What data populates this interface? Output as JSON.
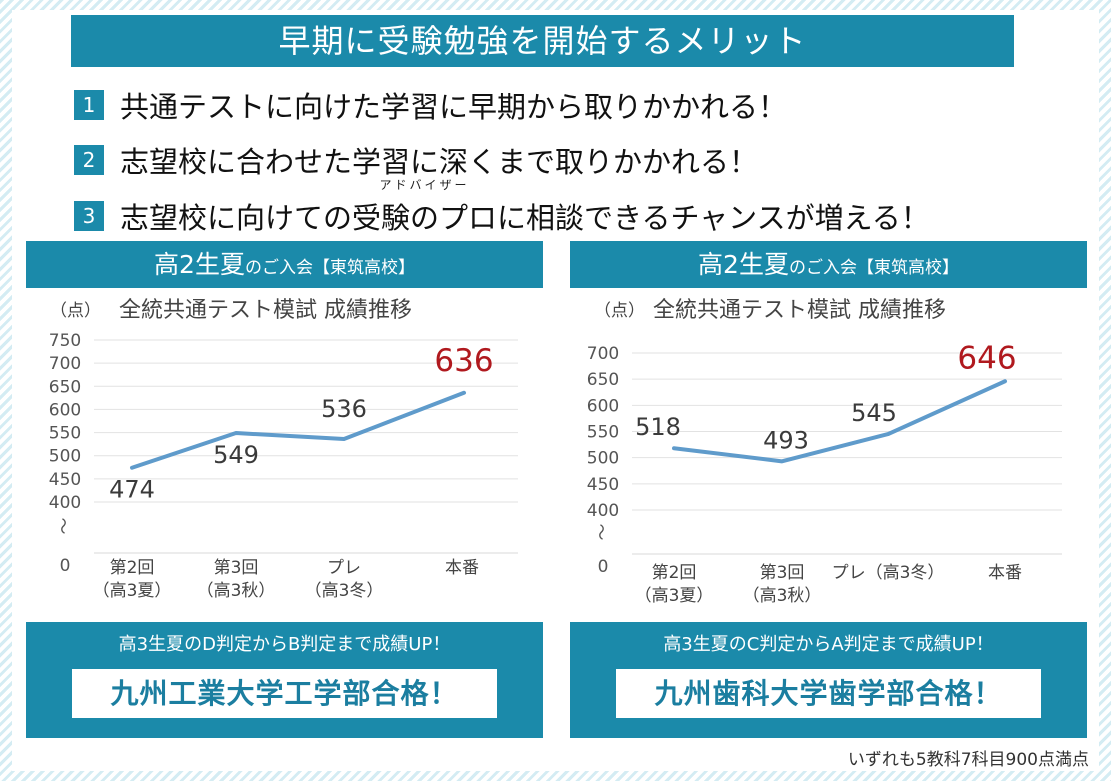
{
  "headline": "早期に受験勉強を開始するメリット",
  "merits": [
    {
      "num": "1",
      "text": "共通テストに向けた学習に早期から取りかかれる！"
    },
    {
      "num": "2",
      "text": "志望校に合わせた学習に深くまで取りかかれる！"
    },
    {
      "num": "3",
      "text_before": "志望校に向けての",
      "ruby_base": "受験のプロ",
      "ruby_text": "アドバイザー",
      "text_after": "に相談できるチャンスが増える！"
    }
  ],
  "panels": [
    {
      "head_big": "高2生夏",
      "head_small": "のご入会【東筑高校】",
      "result_line": "高3生夏のD判定からB判定まで成績UP！",
      "result_school": "九州工業大学工学部合格！"
    },
    {
      "head_big": "高2生夏",
      "head_small": "のご入会【東筑高校】",
      "result_line": "高3生夏のC判定からA判定まで成績UP！",
      "result_school": "九州歯科大学歯学部合格！"
    }
  ],
  "footnote": "いずれも5教科7科目900点満点",
  "colors": {
    "accent": "#1b8aaa",
    "line": "#5f9bcb",
    "highlight": "#b0191e"
  },
  "chart_data": [
    {
      "type": "line",
      "title": "全統共通テスト模試 成績推移",
      "ylabel": "（点）",
      "categories": [
        [
          "第2回",
          "（高3夏）"
        ],
        [
          "第3回",
          "（高3秋）"
        ],
        [
          "プレ",
          "（高3冬）"
        ],
        [
          "本番"
        ]
      ],
      "values": [
        474,
        549,
        536,
        636
      ],
      "value_labels": [
        "474",
        "549",
        "536",
        "636"
      ],
      "highlight_index": 3,
      "yticks": [
        750,
        700,
        650,
        600,
        550,
        500,
        450,
        400,
        0
      ],
      "axis_break": "〜",
      "ylim": [
        400,
        750
      ],
      "grid": true
    },
    {
      "type": "line",
      "title": "全統共通テスト模試 成績推移",
      "ylabel": "（点）",
      "categories": [
        [
          "第2回",
          "（高3夏）"
        ],
        [
          "第3回",
          "（高3秋）"
        ],
        [
          "プレ（高3冬）"
        ],
        [
          "本番"
        ]
      ],
      "values": [
        518,
        493,
        545,
        646
      ],
      "value_labels": [
        "518",
        "493",
        "545",
        "646"
      ],
      "highlight_index": 3,
      "yticks": [
        700,
        650,
        600,
        550,
        500,
        450,
        400,
        0
      ],
      "axis_break": "〜",
      "ylim": [
        400,
        700
      ],
      "grid": true
    }
  ]
}
